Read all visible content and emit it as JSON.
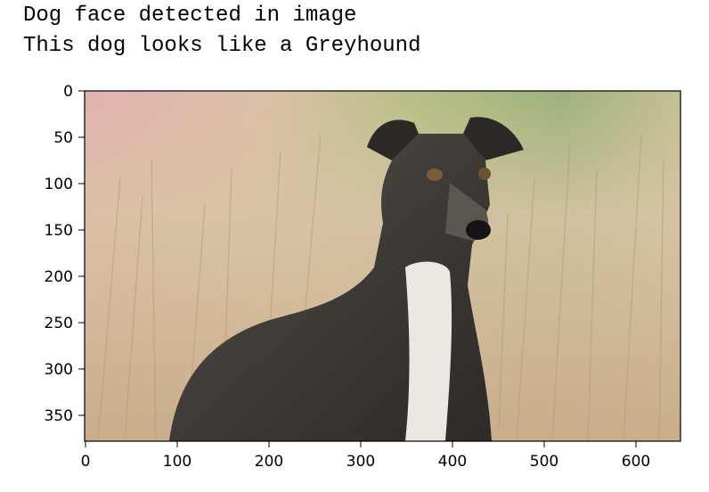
{
  "output": {
    "line1": "Dog face detected in image",
    "line2": "This dog looks like a Greyhound"
  },
  "plot": {
    "image_width": 650,
    "image_height": 380,
    "x_ticks": [
      0,
      100,
      200,
      300,
      400,
      500,
      600
    ],
    "y_ticks": [
      0,
      50,
      100,
      150,
      200,
      250,
      300,
      350
    ],
    "image_description": "dog-photo"
  },
  "colors": {
    "axis": "#000000",
    "grass_light": "#d9c2a6",
    "grass_dark": "#b8a080",
    "bg_green": "#9bb07a",
    "bg_pink": "#e6b4b0",
    "dog_dark": "#3c3a38",
    "dog_mid": "#6f6a64",
    "dog_white": "#ece9e4"
  }
}
